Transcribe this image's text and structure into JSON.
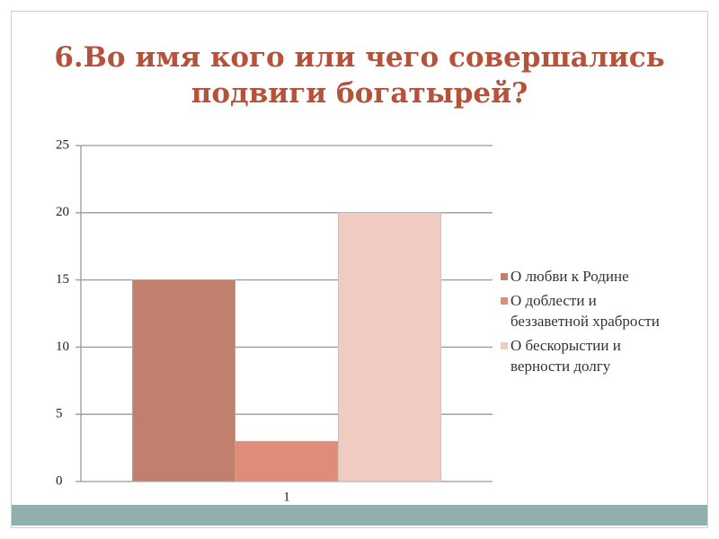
{
  "chart_data": {
    "type": "bar",
    "title": "6.Во имя кого или чего совершались подвиги богатырей?",
    "categories": [
      "1"
    ],
    "series": [
      {
        "name": "О любви к Родине",
        "color": "#c17f6e",
        "values": [
          15
        ]
      },
      {
        "name": "О доблести и беззаветной храбрости",
        "color": "#df8c78",
        "values": [
          3
        ]
      },
      {
        "name": "О бескорыстии и верности долгу",
        "color": "#f0cbc2",
        "values": [
          20
        ]
      }
    ],
    "ylim": [
      0,
      25
    ],
    "yticks": [
      0,
      5,
      10,
      15,
      20,
      25
    ],
    "grid": true,
    "legend": "right"
  }
}
